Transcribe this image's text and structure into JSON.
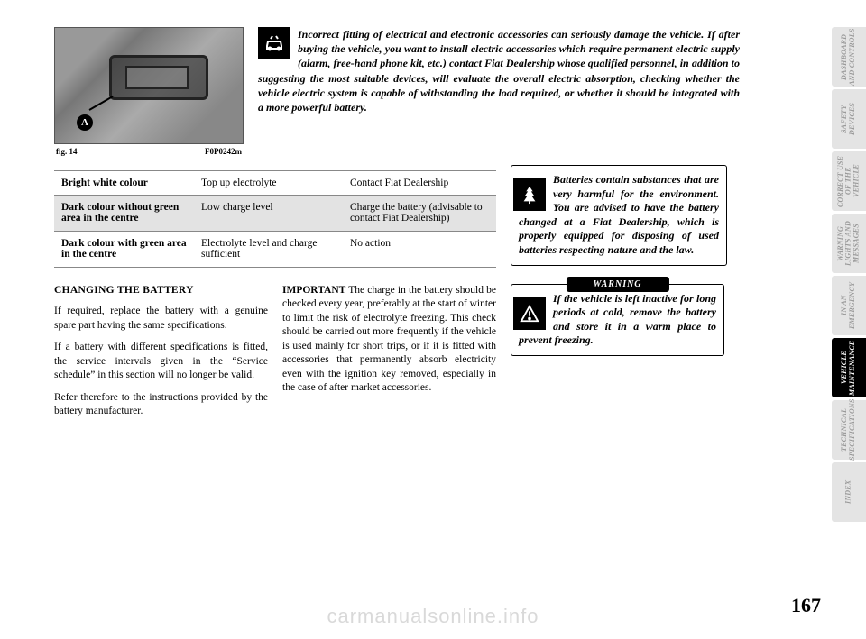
{
  "figure": {
    "letter": "A",
    "caption_left": "fig. 14",
    "caption_right": "F0P0242m"
  },
  "top_warning": {
    "text": "Incorrect fitting of electrical and electronic accessories can seriously damage the vehicle. If after buying the vehicle, you want to install electric accessories which require permanent electric supply (alarm, free-hand phone kit, etc.) contact Fiat Dealership whose qualified personnel, in addition to suggesting the most suitable devices, will evaluate the overall electric absorption, checking whether the vehicle electric system is capable of withstanding the load required, or whether it should be integrated with a more powerful battery."
  },
  "table": {
    "rows": [
      {
        "c1": "Bright white colour",
        "c2": "Top up electrolyte",
        "c3": "Contact Fiat Dealership",
        "shaded": false
      },
      {
        "c1": "Dark colour without green area in the centre",
        "c2": "Low charge level",
        "c3": "Charge the battery (advisable to contact Fiat Dealership)",
        "shaded": true
      },
      {
        "c1": "Dark colour with green area in the centre",
        "c2": "Electrolyte level and charge sufficient",
        "c3": "No action",
        "shaded": false
      }
    ]
  },
  "body": {
    "left": {
      "heading": "CHANGING THE BATTERY",
      "p1": "If required, replace the battery with a genuine spare part having the same specifications.",
      "p2": "If a battery with different specifications is fitted, the service intervals given in the “Service schedule” in this section will no longer be valid.",
      "p3": "Refer therefore to the instructions provided by the battery manufacturer."
    },
    "right": {
      "runin": "IMPORTANT",
      "text": " The charge in the battery should be checked every year, preferably at the start of winter to limit the risk of electrolyte freezing. This check should be carried out more frequently if the vehicle is used mainly for short trips, or if it is fitted with accessories that permanently absorb electricity even with the ignition key removed, especially in the case of after market accessories."
    }
  },
  "notices": {
    "env": "Batteries contain substances that are very harmful for the environment. You are advised to have the battery changed at a Fiat Dealership, which is properly equipped for disposing of used batteries respecting nature and the law.",
    "warning_header": "WARNING",
    "warning": "If the vehicle is left inactive for long periods at cold, remove the battery and store it in a warm place to prevent freezing."
  },
  "tabs": [
    {
      "label": "DASHBOARD AND CONTROLS",
      "active": false
    },
    {
      "label": "SAFETY DEVICES",
      "active": false
    },
    {
      "label": "CORRECT USE OF THE VEHICLE",
      "active": false
    },
    {
      "label": "WARNING LIGHTS AND MESSAGES",
      "active": false
    },
    {
      "label": "IN AN EMERGENCY",
      "active": false
    },
    {
      "label": "VEHICLE MAINTENANCE",
      "active": true
    },
    {
      "label": "TECHNICAL SPECIFICATIONS",
      "active": false
    },
    {
      "label": "INDEX",
      "active": false
    }
  ],
  "page_number": "167",
  "watermark": "carmanualsonline.info",
  "colors": {
    "tab_inactive_bg": "#e4e4e4",
    "tab_inactive_fg": "#9a9a9a",
    "tab_active_bg": "#000000",
    "tab_active_fg": "#ffffff",
    "table_shade": "#e3e3e3"
  }
}
